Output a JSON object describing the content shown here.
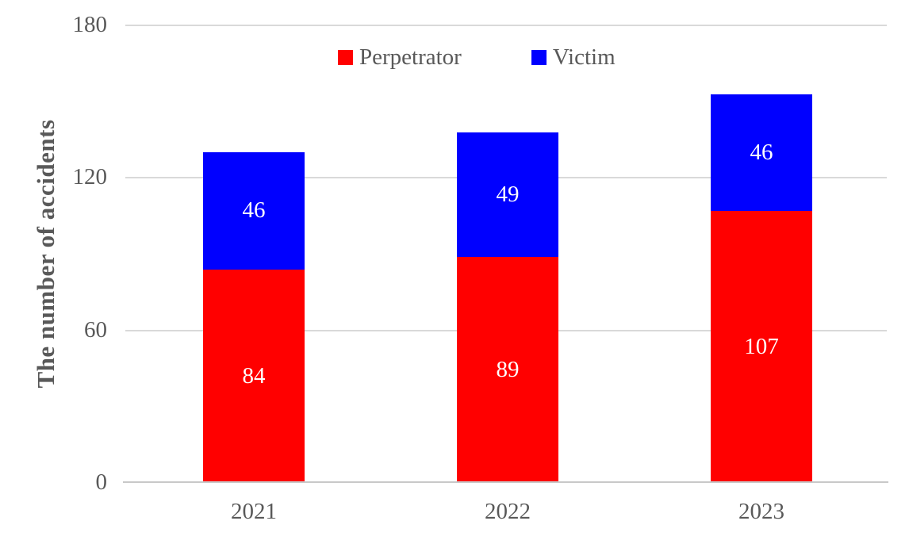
{
  "chart_data": {
    "type": "bar",
    "stacked": true,
    "title": "",
    "categories": [
      "2021",
      "2022",
      "2023"
    ],
    "series": [
      {
        "name": "Perpetrator",
        "color": "#ff0000",
        "values": [
          84,
          89,
          107
        ]
      },
      {
        "name": "Victim",
        "color": "#0000ff",
        "values": [
          46,
          49,
          46
        ]
      }
    ],
    "totals": [
      130,
      138,
      153
    ],
    "xlabel": "",
    "ylabel": "The number of accidents",
    "yticks": [
      0,
      60,
      120,
      180
    ],
    "ylim": [
      0,
      180
    ],
    "grid": true,
    "legend_position": "top-center",
    "data_label_color": "#ffffff",
    "axis_text_color": "#595959",
    "gridline_color": "#d9d9d9"
  }
}
